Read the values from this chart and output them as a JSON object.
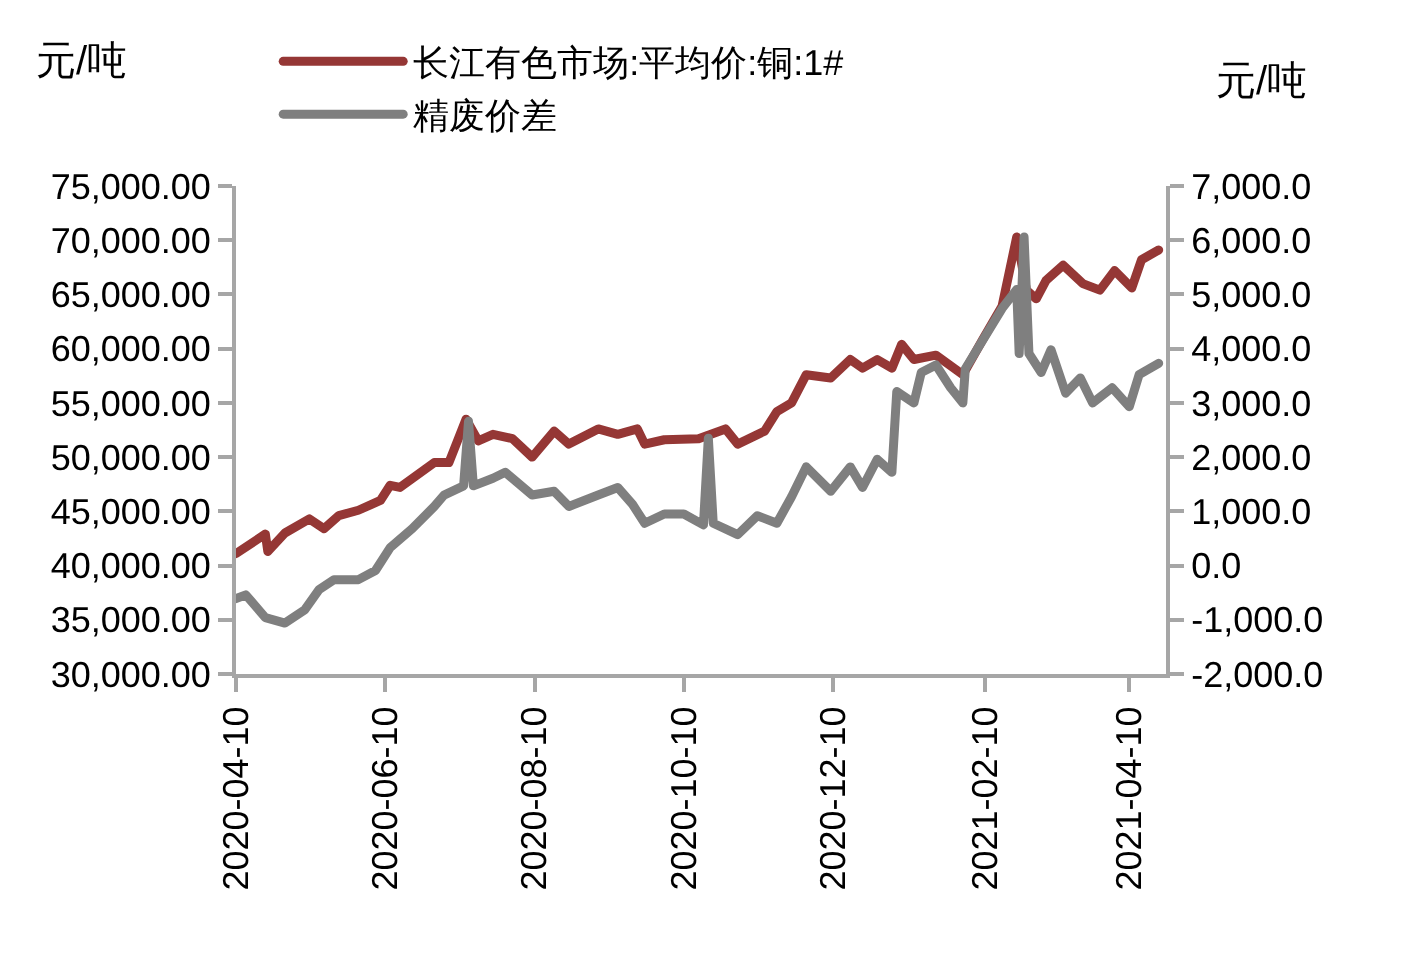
{
  "chart_data": {
    "type": "line",
    "ylabel": "元/吨",
    "y2label": "元/吨",
    "legend": "top",
    "grid": false,
    "marker": "none",
    "line_style": "solid",
    "xlim": [
      "2020-04-10",
      "2021-04-25"
    ],
    "xticks": [
      {
        "value": "2020-04-10",
        "label": "2020-04-10"
      },
      {
        "value": "2020-06-10",
        "label": "2020-06-10"
      },
      {
        "value": "2020-08-10",
        "label": "2020-08-10"
      },
      {
        "value": "2020-10-10",
        "label": "2020-10-10"
      },
      {
        "value": "2020-12-10",
        "label": "2020-12-10"
      },
      {
        "value": "2021-02-10",
        "label": "2021-02-10"
      },
      {
        "value": "2021-04-10",
        "label": "2021-04-10"
      }
    ],
    "ylim": [
      30000,
      75000
    ],
    "yticks": [
      {
        "value": 30000,
        "label": "30,000.00"
      },
      {
        "value": 35000,
        "label": "35,000.00"
      },
      {
        "value": 40000,
        "label": "40,000.00"
      },
      {
        "value": 45000,
        "label": "45,000.00"
      },
      {
        "value": 50000,
        "label": "50,000.00"
      },
      {
        "value": 55000,
        "label": "55,000.00"
      },
      {
        "value": 60000,
        "label": "60,000.00"
      },
      {
        "value": 65000,
        "label": "65,000.00"
      },
      {
        "value": 70000,
        "label": "70,000.00"
      },
      {
        "value": 75000,
        "label": "75,000.00"
      }
    ],
    "y2lim": [
      -2000,
      7000
    ],
    "y2ticks": [
      {
        "value": -2000,
        "label": "-2,000.0"
      },
      {
        "value": -1000,
        "label": "-1,000.0"
      },
      {
        "value": 0,
        "label": "0.0"
      },
      {
        "value": 1000,
        "label": "1,000.0"
      },
      {
        "value": 2000,
        "label": "2,000.0"
      },
      {
        "value": 3000,
        "label": "3,000.0"
      },
      {
        "value": 4000,
        "label": "4,000.0"
      },
      {
        "value": 5000,
        "label": "5,000.0"
      },
      {
        "value": 6000,
        "label": "6,000.0"
      },
      {
        "value": 7000,
        "label": "7,000.0"
      }
    ],
    "series": [
      {
        "name": "长江有色市场:平均价:铜:1#",
        "color": "#953735",
        "x": [
          "2020-04-10",
          "2020-04-22",
          "2020-04-23",
          "2020-04-30",
          "2020-05-10",
          "2020-05-16",
          "2020-05-22",
          "2020-05-30",
          "2020-06-08",
          "2020-06-12",
          "2020-06-16",
          "2020-06-30",
          "2020-07-06",
          "2020-07-13",
          "2020-07-18",
          "2020-07-24",
          "2020-08-01",
          "2020-08-09",
          "2020-08-18",
          "2020-08-24",
          "2020-09-05",
          "2020-09-13",
          "2020-09-21",
          "2020-09-24",
          "2020-10-02",
          "2020-10-16",
          "2020-10-27",
          "2020-11-01",
          "2020-11-12",
          "2020-11-17",
          "2020-11-23",
          "2020-11-29",
          "2020-12-09",
          "2020-12-17",
          "2020-12-22",
          "2020-12-28",
          "2021-01-03",
          "2021-01-07",
          "2021-01-12",
          "2021-01-21",
          "2021-02-01",
          "2021-02-09",
          "2021-02-17",
          "2021-02-23",
          "2021-02-27",
          "2021-03-03",
          "2021-03-07",
          "2021-03-14",
          "2021-03-22",
          "2021-03-29",
          "2021-04-04",
          "2021-04-11",
          "2021-04-15",
          "2021-04-22"
        ],
        "values": [
          41100,
          42900,
          41300,
          43000,
          44300,
          43400,
          44600,
          45100,
          46000,
          47400,
          47200,
          49500,
          49500,
          53500,
          51500,
          52100,
          51700,
          50000,
          52400,
          51200,
          52600,
          52100,
          52600,
          51200,
          51600,
          51700,
          52600,
          51200,
          52400,
          54200,
          55000,
          57600,
          57300,
          59000,
          58200,
          59000,
          58200,
          60400,
          59000,
          59400,
          57600,
          60800,
          63900,
          70300,
          65400,
          64600,
          66300,
          67700,
          66000,
          65400,
          67200,
          65600,
          68200,
          69100
        ]
      },
      {
        "name": "精废价差",
        "color": "#7f7f7f",
        "axis": "y2",
        "x": [
          "2020-04-10",
          "2020-04-14",
          "2020-04-22",
          "2020-04-30",
          "2020-05-08",
          "2020-05-14",
          "2020-05-20",
          "2020-05-30",
          "2020-06-06",
          "2020-06-12",
          "2020-06-21",
          "2020-06-30",
          "2020-07-04",
          "2020-07-12",
          "2020-07-14",
          "2020-07-16",
          "2020-07-24",
          "2020-07-29",
          "2020-08-09",
          "2020-08-18",
          "2020-08-24",
          "2020-09-05",
          "2020-09-13",
          "2020-09-19",
          "2020-09-24",
          "2020-10-02",
          "2020-10-10",
          "2020-10-18",
          "2020-10-20",
          "2020-10-22",
          "2020-11-01",
          "2020-11-09",
          "2020-11-17",
          "2020-11-23",
          "2020-11-29",
          "2020-12-09",
          "2020-12-17",
          "2020-12-22",
          "2020-12-28",
          "2021-01-03",
          "2021-01-05",
          "2021-01-12",
          "2021-01-15",
          "2021-01-21",
          "2021-01-27",
          "2021-02-01",
          "2021-02-02",
          "2021-02-17",
          "2021-02-23",
          "2021-02-24",
          "2021-02-26",
          "2021-02-28",
          "2021-03-05",
          "2021-03-09",
          "2021-03-15",
          "2021-03-21",
          "2021-03-26",
          "2021-04-03",
          "2021-04-10",
          "2021-04-14",
          "2021-04-22"
        ],
        "values": [
          -610,
          -540,
          -960,
          -1060,
          -820,
          -440,
          -260,
          -260,
          -90,
          330,
          680,
          1090,
          1300,
          1470,
          2660,
          1470,
          1610,
          1720,
          1300,
          1370,
          1090,
          1300,
          1440,
          1130,
          780,
          950,
          950,
          750,
          2350,
          780,
          570,
          920,
          780,
          1270,
          1820,
          1370,
          1820,
          1440,
          1960,
          1720,
          3210,
          3000,
          3560,
          3700,
          3280,
          3000,
          3630,
          4740,
          5090,
          3910,
          6060,
          3910,
          3560,
          3980,
          3180,
          3460,
          3000,
          3280,
          2930,
          3520,
          3730
        ]
      }
    ]
  }
}
